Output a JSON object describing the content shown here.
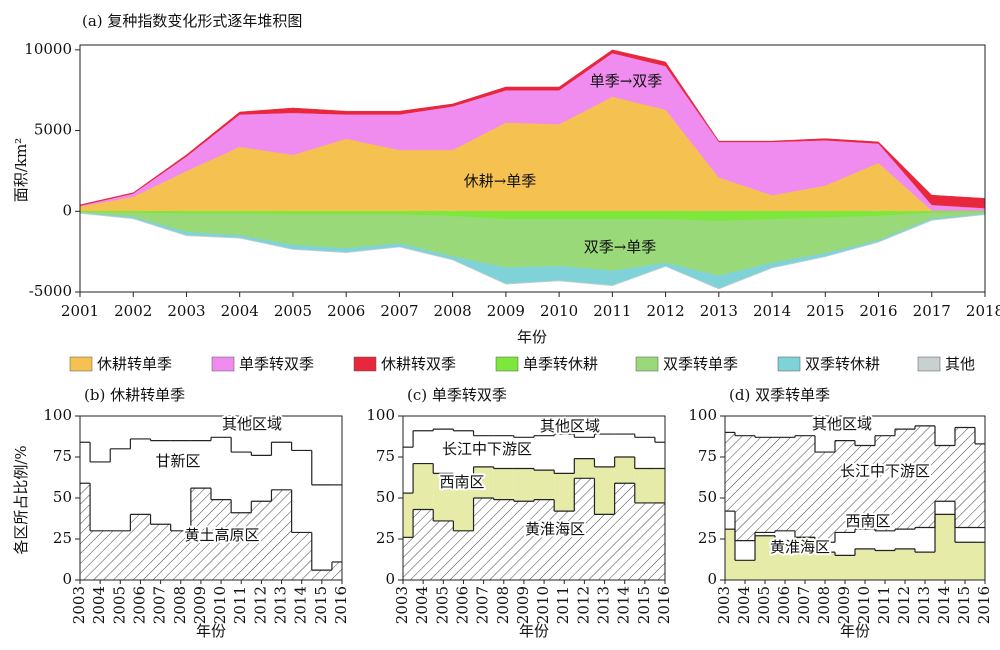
{
  "chart_data": [
    {
      "type": "area",
      "stacked": true,
      "title": "(a) 复种指数变化形式逐年堆积图",
      "x_label": "年份",
      "y_label": "面积/km²",
      "annotations": [
        "单季→双季",
        "休耕→单季",
        "双季→单季"
      ],
      "x": [
        2001,
        2002,
        2003,
        2004,
        2005,
        2006,
        2007,
        2008,
        2009,
        2010,
        2011,
        2012,
        2013,
        2014,
        2015,
        2016,
        2017,
        2018
      ],
      "xlim": [
        2001,
        2018
      ],
      "xticks": [
        2001,
        2002,
        2003,
        2004,
        2005,
        2006,
        2007,
        2008,
        2009,
        2010,
        2011,
        2012,
        2013,
        2014,
        2015,
        2016,
        2017,
        2018
      ],
      "ylim": [
        -5000,
        10300
      ],
      "yticks": [
        -5000,
        0,
        5000,
        10000
      ],
      "legend": "bottom",
      "series": [
        {
          "name": "休耕转单季",
          "color": "#f5c150",
          "values": [
            300,
            900,
            2500,
            4000,
            3500,
            4500,
            3800,
            3800,
            5500,
            5400,
            7100,
            6300,
            2100,
            1000,
            1600,
            3000,
            50,
            0
          ]
        },
        {
          "name": "单季转双季",
          "color": "#f08cf0",
          "values": [
            50,
            200,
            900,
            2000,
            2600,
            1500,
            2200,
            2700,
            2000,
            2100,
            2700,
            2700,
            2200,
            3300,
            2800,
            1200,
            350,
            200
          ]
        },
        {
          "name": "休耕转双季",
          "color": "#e8273c",
          "values": [
            50,
            50,
            100,
            150,
            300,
            200,
            200,
            150,
            200,
            200,
            200,
            250,
            50,
            50,
            100,
            100,
            600,
            600
          ]
        },
        {
          "name": "单季转休耕",
          "color": "#7ce83c",
          "values": [
            -50,
            -100,
            -150,
            -150,
            -200,
            -200,
            -200,
            -300,
            -500,
            -500,
            -500,
            -500,
            -600,
            -500,
            -400,
            -300,
            -100,
            -50
          ]
        },
        {
          "name": "双季转单季",
          "color": "#9ad97a",
          "values": [
            -50,
            -250,
            -1150,
            -1350,
            -1900,
            -2100,
            -1800,
            -2500,
            -3000,
            -2900,
            -3200,
            -2700,
            -3400,
            -2700,
            -2200,
            -1500,
            -350,
            -100
          ]
        },
        {
          "name": "双季转休耕",
          "color": "#7fd3d8",
          "values": [
            -20,
            -100,
            -200,
            -150,
            -250,
            -250,
            -200,
            -200,
            -1000,
            -900,
            -900,
            -200,
            -800,
            -300,
            -200,
            -100,
            -100,
            -50
          ]
        },
        {
          "name": "其他",
          "color": "#c8d0d0",
          "values": [
            -10,
            -20,
            -20,
            -20,
            -20,
            -20,
            -20,
            -20,
            -20,
            -20,
            -20,
            -20,
            -20,
            -20,
            -20,
            -20,
            -20,
            -10
          ]
        }
      ]
    },
    {
      "type": "step_area",
      "stacked": true,
      "title": "(b) 休耕转单季",
      "x_label": "年份",
      "y_label": "各区所占比例/%",
      "categories": [
        "2003",
        "2004",
        "2005",
        "2006",
        "2007",
        "2008",
        "2009",
        "2010",
        "2011",
        "2012",
        "2013",
        "2014",
        "2015",
        "2016"
      ],
      "ylim": [
        0,
        100
      ],
      "yticks": [
        0,
        25,
        50,
        75,
        100
      ],
      "series": [
        {
          "name": "黄土高原区",
          "color": "#ffffff",
          "hatch": true,
          "values": [
            59,
            30,
            30,
            40,
            34,
            30,
            56,
            49,
            41,
            48,
            55,
            29,
            6,
            11
          ]
        },
        {
          "name": "甘新区",
          "color": "#ffffff",
          "values": [
            25,
            42,
            50,
            46,
            51,
            55,
            29,
            38,
            37,
            28,
            29,
            50,
            52,
            47
          ]
        },
        {
          "name": "其他区域",
          "color": "#ffffff",
          "values": [
            16,
            28,
            20,
            14,
            15,
            15,
            15,
            13,
            22,
            24,
            16,
            21,
            42,
            42
          ]
        }
      ]
    },
    {
      "type": "step_area",
      "stacked": true,
      "title": "(c) 单季转双季",
      "x_label": "年份",
      "categories": [
        "2003",
        "2004",
        "2005",
        "2006",
        "2007",
        "2008",
        "2009",
        "2010",
        "2011",
        "2012",
        "2013",
        "2014",
        "2015",
        "2016"
      ],
      "ylim": [
        0,
        100
      ],
      "yticks": [
        0,
        25,
        50,
        75,
        100
      ],
      "series": [
        {
          "name": "黄淮海区",
          "color": "#ffffff",
          "hatch": true,
          "values": [
            26,
            43,
            36,
            30,
            50,
            49,
            48,
            49,
            42,
            62,
            40,
            59,
            47,
            47
          ]
        },
        {
          "name": "西南区",
          "color": "#e6eba8",
          "values": [
            27,
            28,
            29,
            34,
            19,
            19,
            20,
            18,
            23,
            12,
            29,
            16,
            21,
            21
          ]
        },
        {
          "name": "长江中下游区",
          "color": "#ffffff",
          "values": [
            28,
            20,
            27,
            27,
            19,
            20,
            19,
            21,
            24,
            13,
            20,
            14,
            19,
            16
          ]
        },
        {
          "name": "其他区域",
          "color": "#ffffff",
          "values": [
            19,
            9,
            8,
            9,
            12,
            12,
            13,
            12,
            11,
            13,
            11,
            11,
            13,
            16
          ]
        }
      ]
    },
    {
      "type": "step_area",
      "stacked": true,
      "title": "(d) 双季转单季",
      "x_label": "年份",
      "categories": [
        "2003",
        "2004",
        "2005",
        "2006",
        "2007",
        "2008",
        "2009",
        "2010",
        "2011",
        "2012",
        "2013",
        "2014",
        "2015",
        "2016"
      ],
      "ylim": [
        0,
        100
      ],
      "yticks": [
        0,
        25,
        50,
        75,
        100
      ],
      "series": [
        {
          "name": "黄淮海区",
          "color": "#e6eba8",
          "values": [
            31,
            12,
            27,
            21,
            26,
            17,
            15,
            19,
            18,
            19,
            17,
            40,
            23,
            23
          ]
        },
        {
          "name": "西南区",
          "color": "#ffffff",
          "values": [
            11,
            12,
            2,
            9,
            0,
            6,
            14,
            12,
            12,
            12,
            15,
            8,
            9,
            9
          ]
        },
        {
          "name": "长江中下游区",
          "color": "#ffffff",
          "hatch": true,
          "values": [
            48,
            64,
            58,
            57,
            62,
            55,
            56,
            51,
            58,
            61,
            62,
            34,
            61,
            51
          ]
        },
        {
          "name": "其他区域",
          "color": "#ffffff",
          "values": [
            10,
            12,
            13,
            13,
            12,
            22,
            15,
            18,
            12,
            8,
            6,
            18,
            7,
            17
          ]
        }
      ]
    }
  ]
}
